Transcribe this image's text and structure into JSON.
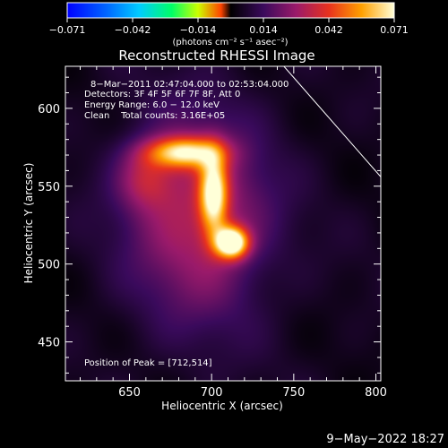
{
  "chart_data": {
    "type": "heatmap",
    "title": "Reconstructed RHESSI Image",
    "xlabel": "Heliocentric X (arcsec)",
    "ylabel": "Heliocentric Y (arcsec)",
    "xlim": [
      611,
      803
    ],
    "ylim": [
      425,
      627
    ],
    "x_ticks": [
      "650",
      "700",
      "750",
      "800"
    ],
    "y_ticks": [
      "450",
      "500",
      "550",
      "600"
    ],
    "colorbar": {
      "ticks": [
        "−0.071",
        "−0.042",
        "−0.014",
        "0.014",
        "0.042",
        "0.071"
      ],
      "units": "(photons cm⁻² s⁻¹ asec⁻²)",
      "range": [
        -0.071,
        0.071
      ],
      "colormap": "rainbow-negative / hot-positive"
    },
    "info_lines": [
      "8−Mar−2011 02:47:04.000 to 02:53:04.000",
      "Detectors: 3F 4F 5F 6F 7F 8F, Att 0",
      "Energy Range: 6.0 − 12.0 keV",
      "Clean    Total counts: 3.16E+05"
    ],
    "peak_label": "Position of Peak = [712,514]",
    "peak": [
      712,
      514
    ],
    "background_value": 0.006,
    "sources": [
      {
        "x": 712,
        "y": 514,
        "sx": 7,
        "sy": 7,
        "amp": 0.07
      },
      {
        "x": 701,
        "y": 545,
        "sx": 6,
        "sy": 18,
        "amp": 0.052
      },
      {
        "x": 683,
        "y": 572,
        "sx": 16,
        "sy": 7,
        "amp": 0.05
      },
      {
        "x": 692,
        "y": 530,
        "sx": 30,
        "sy": 46,
        "amp": 0.028
      },
      {
        "x": 660,
        "y": 555,
        "sx": 12,
        "sy": 14,
        "amp": 0.02
      }
    ],
    "limb_line": {
      "x": [
        744,
        803
      ],
      "y": [
        627,
        556
      ]
    }
  },
  "footer": {
    "date": "9−May−2022 18:27"
  }
}
